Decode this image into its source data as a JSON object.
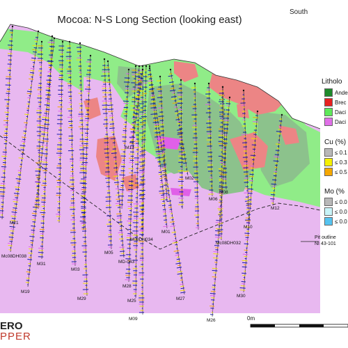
{
  "header": {
    "title": "Mocoa: N-S Long Section (looking east)",
    "orientation_label": "South"
  },
  "legend": {
    "lithology": {
      "title": "Litholo",
      "items": [
        {
          "label": "Ande",
          "color": "#1e8a2b"
        },
        {
          "label": "Brec",
          "color": "#e82020"
        },
        {
          "label": "Daci",
          "color": "#5ee85a"
        },
        {
          "label": "Daci",
          "color": "#e070e8"
        }
      ]
    },
    "cu": {
      "title": "Cu (%)",
      "items": [
        {
          "label": "≤ 0.1",
          "color": "#b8b8b8"
        },
        {
          "label": "≤ 0.3",
          "color": "#f5f000"
        },
        {
          "label": "≤ 0.5",
          "color": "#f5a800"
        }
      ]
    },
    "mo": {
      "title": "Mo (%",
      "items": [
        {
          "label": "≤ 0.0",
          "color": "#b8b8b8"
        },
        {
          "label": "≤ 0.0",
          "color": "#c8f4f8"
        },
        {
          "label": "≤ 0.0",
          "color": "#55c3f0"
        }
      ]
    }
  },
  "colors": {
    "host_pink": "#e8b8f0",
    "dacite_green": "#90ec88",
    "andesite_green": "#8cc28c",
    "breccia_red": "#ec8585",
    "trace_blue": "#1a1aa8",
    "trace_yellow": "#f0e400"
  },
  "drill_holes": [
    {
      "label": "M21"
    },
    {
      "label": "Mc08DH038"
    },
    {
      "label": "M31"
    },
    {
      "label": "M19"
    },
    {
      "label": "M03"
    },
    {
      "label": "M29"
    },
    {
      "label": "M05"
    },
    {
      "label": "MD-043"
    },
    {
      "label": "M28"
    },
    {
      "label": "M25"
    },
    {
      "label": "M09"
    },
    {
      "label": "M08DH034"
    },
    {
      "label": "M01"
    },
    {
      "label": "M27"
    },
    {
      "label": "M13"
    },
    {
      "label": "M02"
    },
    {
      "label": "M06"
    },
    {
      "label": "M08"
    },
    {
      "label": "Mc08DH032"
    },
    {
      "label": "M10"
    },
    {
      "label": "M12"
    },
    {
      "label": "M30"
    },
    {
      "label": "M26"
    }
  ],
  "pit_note": {
    "line1": "Pit outline",
    "line2": "NI 43-101"
  },
  "logo": {
    "line1": "ERO",
    "line2": "PPER"
  },
  "scale": {
    "zero_label": "0m"
  }
}
